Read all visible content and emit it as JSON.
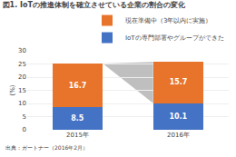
{
  "chart_data": {
    "type": "bar",
    "title": "図1. IoTの推進体制を確立させている企業の割合の変化",
    "annotations": [
      "出典：ガートナー（2016年2月）"
    ],
    "ylabel": "(%)",
    "categories": [
      "2015年",
      "2016年"
    ],
    "series": [
      {
        "name": "IoTの専門部署やグループができた",
        "color": "#4472c4",
        "values": [
          8.5,
          10.1
        ]
      },
      {
        "name": "現在準備中（3年以内に実施）",
        "color": "#e8732a",
        "values": [
          16.7,
          15.7
        ]
      }
    ],
    "stacked": true,
    "data_labels": true,
    "ylim": [
      0,
      30
    ],
    "yticks": [
      0,
      5,
      10,
      15,
      20,
      25,
      30
    ],
    "grid": true,
    "legend": "upper right"
  }
}
